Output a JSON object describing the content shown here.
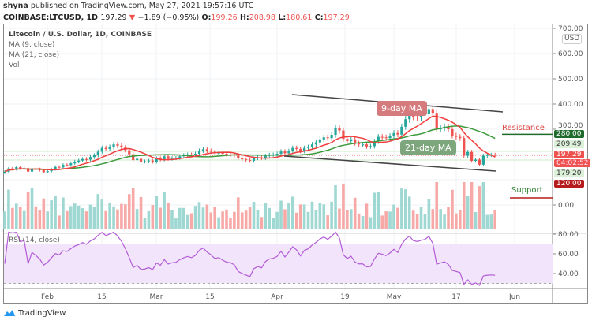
{
  "header": {
    "author": "shyna",
    "published": "published on TradingView.com, May 27, 2021 19:57:16 UTC",
    "symbol": "COINBASE:LTCUSD, 1D",
    "last": "197.29",
    "change": "−1.89 (−0.95%)",
    "o_label": "O:",
    "o": "199.26",
    "h_label": "H:",
    "h": "208.98",
    "l_label": "L:",
    "l": "180.61",
    "c_label": "C:",
    "c": "197.29"
  },
  "legend": {
    "title": "Litecoin / U.S. Dollar, 1D, COINBASE",
    "ma9": "MA (9, close)",
    "ma21": "MA (21, close)",
    "vol": "Vol"
  },
  "annotations": {
    "ma9": "9-day MA",
    "ma21": "21-day MA",
    "resistance": "Resistance",
    "support": "Support"
  },
  "price_tags": {
    "resistance": "280.00",
    "upper_band": "209.49",
    "last": "197.29",
    "countdown": "04:02:52",
    "lower_band": "179.20",
    "support": "120.00",
    "currency": "USD"
  },
  "rsi": {
    "label": "RSI (14, close)"
  },
  "branding": {
    "logo": "TradingView"
  },
  "colors": {
    "up": "#26a69a",
    "down": "#ef5350",
    "ma9": "#f23d3d",
    "ma21": "#3c9a3c",
    "rsi": "#b35cd6",
    "rsi_band": "#f1e4fb",
    "resistance": "#1e6b2c",
    "support": "#b71c1c"
  },
  "chart_data": [
    {
      "type": "candlestick",
      "title": "Litecoin / U.S. Dollar, 1D, COINBASE",
      "start_date": "2021-01-21",
      "y_ticks": [
        "700.00",
        "600.00",
        "500.00",
        "400.00",
        "300.00",
        "0.00"
      ],
      "ylim": [
        0,
        700
      ],
      "x_ticks": [
        "Feb",
        "15",
        "Mar",
        "15",
        "Apr",
        "19",
        "May",
        "17",
        "Jun"
      ],
      "close": [
        132,
        145,
        142,
        150,
        145,
        146,
        132,
        145,
        142,
        138,
        130,
        134,
        142,
        151,
        149,
        159,
        158,
        165,
        172,
        176,
        182,
        180,
        190,
        197,
        211,
        226,
        222,
        230,
        240,
        235,
        228,
        217,
        201,
        178,
        183,
        172,
        173,
        176,
        171,
        185,
        180,
        193,
        183,
        186,
        187,
        193,
        197,
        200,
        198,
        203,
        215,
        221,
        215,
        211,
        205,
        207,
        203,
        200,
        199,
        196,
        185,
        181,
        178,
        175,
        185,
        188,
        186,
        195,
        199,
        200,
        203,
        212,
        205,
        214,
        226,
        222,
        214,
        226,
        230,
        240,
        248,
        260,
        268,
        265,
        278,
        305,
        295,
        262,
        253,
        260,
        245,
        240,
        240,
        232,
        233,
        252,
        270,
        268,
        265,
        273,
        285,
        279,
        310,
        340,
        360,
        350,
        348,
        355,
        360,
        380,
        365,
        300,
        305,
        310,
        300,
        275,
        270,
        265,
        195,
        210,
        175,
        180,
        160,
        195,
        198,
        199,
        197.29
      ],
      "overlays": [
        "MA (9, close)",
        "MA (21, close)",
        "Vol"
      ],
      "levels": {
        "resistance": 280,
        "support": 120
      }
    },
    {
      "type": "line",
      "title": "RSI (14, close)",
      "y_ticks": [
        "80.00",
        "60.00",
        "40.00"
      ],
      "ylim": [
        20,
        85
      ],
      "bands": [
        30,
        70
      ]
    }
  ]
}
